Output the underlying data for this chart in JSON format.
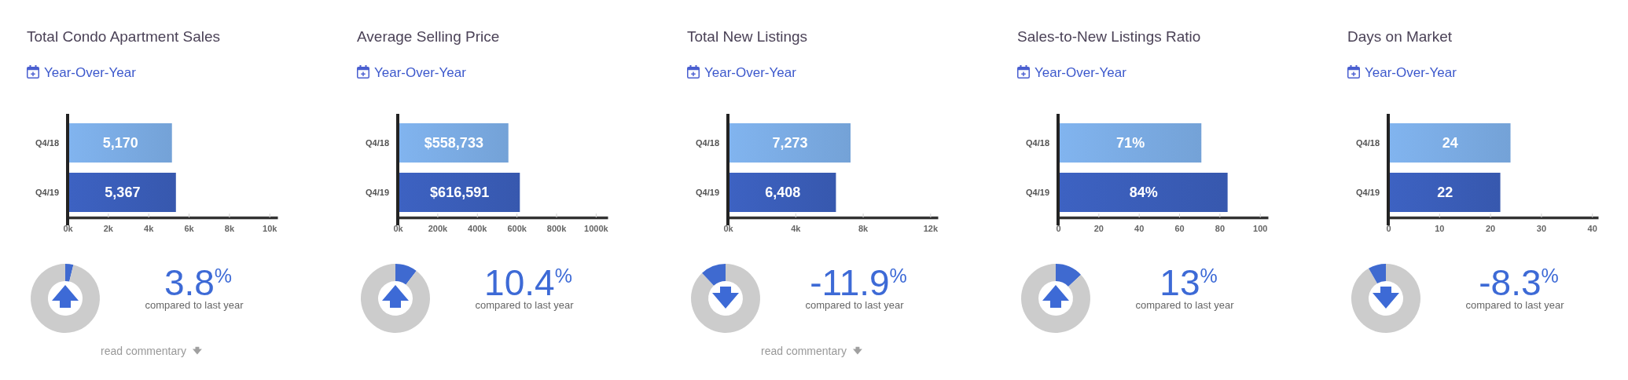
{
  "chart_data": [
    {
      "type": "bar",
      "orientation": "horizontal",
      "title": "Total Condo Apartment Sales",
      "subtitle": "Year-Over-Year",
      "categories": [
        "Q4/18",
        "Q4/19"
      ],
      "values": [
        5170,
        5367
      ],
      "colors": [
        "#7aabe3",
        "#3a5db8"
      ],
      "value_labels": [
        "5,170",
        "5,367"
      ],
      "xlim": [
        0,
        10400
      ],
      "xticks": [
        {
          "value": 0,
          "label": "0k"
        },
        {
          "value": 2000,
          "label": "2k"
        },
        {
          "value": 4000,
          "label": "4k"
        },
        {
          "value": 6000,
          "label": "6k"
        },
        {
          "value": 8000,
          "label": "8k"
        },
        {
          "value": 10000,
          "label": "10k"
        }
      ]
    },
    {
      "type": "donut",
      "categories": [
        null,
        null
      ],
      "values": [
        3.8,
        96.2
      ],
      "colors": [
        "#3f6ad0",
        "#cccccc"
      ],
      "annotations": [
        "3.8$^{%}$",
        "compared to last year",
        "read commentary"
      ]
    },
    {
      "type": "bar",
      "orientation": "horizontal",
      "title": "Average Selling Price",
      "subtitle": "Year-Over-Year",
      "categories": [
        "Q4/18",
        "Q4/19"
      ],
      "values": [
        558733,
        616591
      ],
      "colors": [
        "#7aabe3",
        "#3a5db8"
      ],
      "value_labels": [
        "$558,733",
        "$616,591"
      ],
      "xlim": [
        0,
        1060000
      ],
      "xticks": [
        {
          "value": 0,
          "label": "0k"
        },
        {
          "value": 200000,
          "label": "200k"
        },
        {
          "value": 400000,
          "label": "400k"
        },
        {
          "value": 600000,
          "label": "600k"
        },
        {
          "value": 800000,
          "label": "800k"
        },
        {
          "value": 1000000,
          "label": "1000k"
        }
      ]
    },
    {
      "type": "donut",
      "categories": [
        null,
        null
      ],
      "values": [
        10.4,
        89.6
      ],
      "colors": [
        "#3f6ad0",
        "#cccccc"
      ],
      "annotations": [
        "10.4$^{%}$",
        "compared to last year"
      ]
    },
    {
      "type": "bar",
      "orientation": "horizontal",
      "title": "Total New Listings",
      "subtitle": "Year-Over-Year",
      "categories": [
        "Q4/18",
        "Q4/19"
      ],
      "values": [
        7273,
        6408
      ],
      "colors": [
        "#7aabe3",
        "#3a5db8"
      ],
      "value_labels": [
        "7,273",
        "6,408"
      ],
      "xlim": [
        0,
        12450
      ],
      "xticks": [
        {
          "value": 0,
          "label": "0k"
        },
        {
          "value": 4000,
          "label": "4k"
        },
        {
          "value": 8000,
          "label": "8k"
        },
        {
          "value": 12000,
          "label": "12k"
        }
      ]
    },
    {
      "type": "donut",
      "categories": [
        null,
        null
      ],
      "values": [
        88.1,
        11.9
      ],
      "colors": [
        "#cccccc",
        "#3f6ad0"
      ],
      "annotations": [
        "-11.9$^{%}$",
        "compared to last year",
        "read commentary"
      ]
    },
    {
      "type": "bar",
      "orientation": "horizontal",
      "title": "Sales-to-New Listings Ratio",
      "subtitle": "Year-Over-Year",
      "categories": [
        "Q4/18",
        "Q4/19"
      ],
      "values": [
        71,
        84
      ],
      "colors": [
        "#7aabe3",
        "#3a5db8"
      ],
      "value_labels": [
        "71%",
        "84%"
      ],
      "xlim": [
        0,
        104
      ],
      "xticks": [
        0,
        20,
        40,
        60,
        80,
        100
      ]
    },
    {
      "type": "donut",
      "categories": [
        null,
        null
      ],
      "values": [
        13,
        87
      ],
      "colors": [
        "#3f6ad0",
        "#cccccc"
      ],
      "annotations": [
        "13$^{%}$",
        "compared to last year"
      ]
    },
    {
      "type": "bar",
      "orientation": "horizontal",
      "title": "Days on Market",
      "subtitle": "Year-Over-Year",
      "categories": [
        "Q4/18",
        "Q4/19"
      ],
      "values": [
        24,
        22
      ],
      "colors": [
        "#7aabe3",
        "#3a5db8"
      ],
      "value_labels": [
        "24",
        "22"
      ],
      "xlim": [
        0,
        41.2
      ],
      "xticks": [
        0,
        10,
        20,
        30,
        40
      ]
    },
    {
      "type": "donut",
      "categories": [
        null,
        null
      ],
      "values": [
        91.7,
        8.3
      ],
      "colors": [
        "#cccccc",
        "#3f6ad0"
      ],
      "annotations": [
        "-8.3$^{%}$",
        "compared to last year"
      ]
    }
  ]
}
